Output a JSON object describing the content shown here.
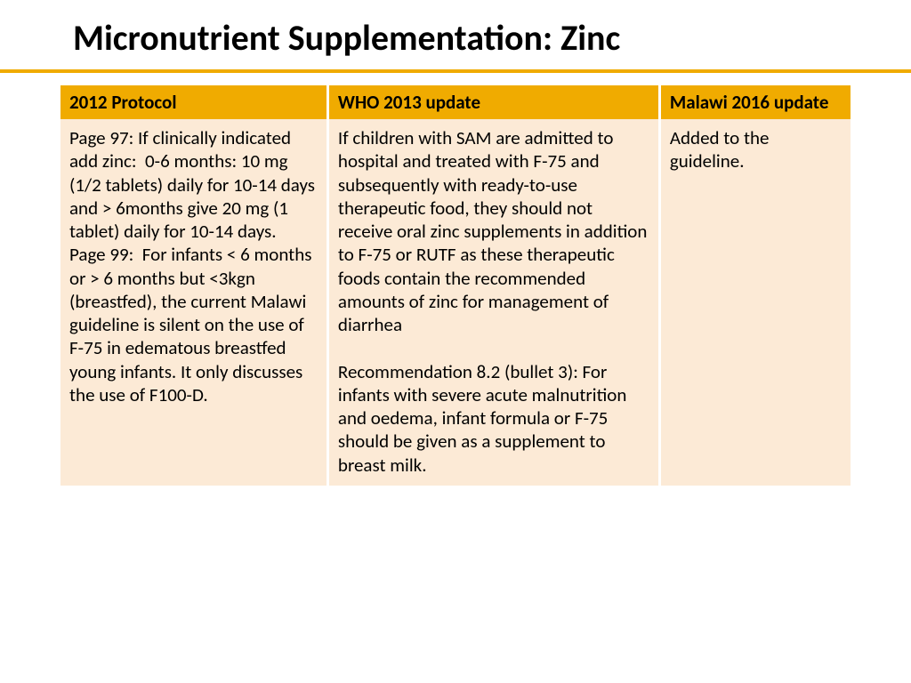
{
  "title": "Micronutrient Supplementation: Zinc",
  "table": {
    "columns": [
      "2012 Protocol",
      "WHO 2013 update",
      "Malawi 2016 update"
    ],
    "rows": [
      [
        "Page 97: If clinically indicated add zinc:  0-6 months: 10 mg (1/2 tablets) daily for 10-14 days and > 6months give 20 mg (1 tablet) daily for 10-14 days.\nPage 99:  For infants < 6 months or > 6 months but <3kgn (breastfed), the current Malawi guideline is silent on the use of F-75 in edematous breastfed young infants. It only discusses the use of F100-D.",
        "If children with SAM are admitted to hospital and treated with F-75 and subsequently with ready-to-use therapeutic food, they should not receive oral zinc supplements in addition to F-75 or RUTF as these therapeutic foods contain the recommended amounts of zinc for management of diarrhea\n\nRecommendation 8.2 (bullet 3): For infants with severe acute malnutrition and oedema, infant formula or F-75 should be given as a supplement to breast milk.",
        "Added to the guideline."
      ]
    ],
    "header_bg": "#f0ab00",
    "body_bg": "#fcead6",
    "divider_color": "#f0ab00",
    "text_color": "#000000",
    "column_widths_pct": [
      34,
      42,
      24
    ],
    "font_size_pt": 21,
    "title_font_size_pt": 40
  }
}
